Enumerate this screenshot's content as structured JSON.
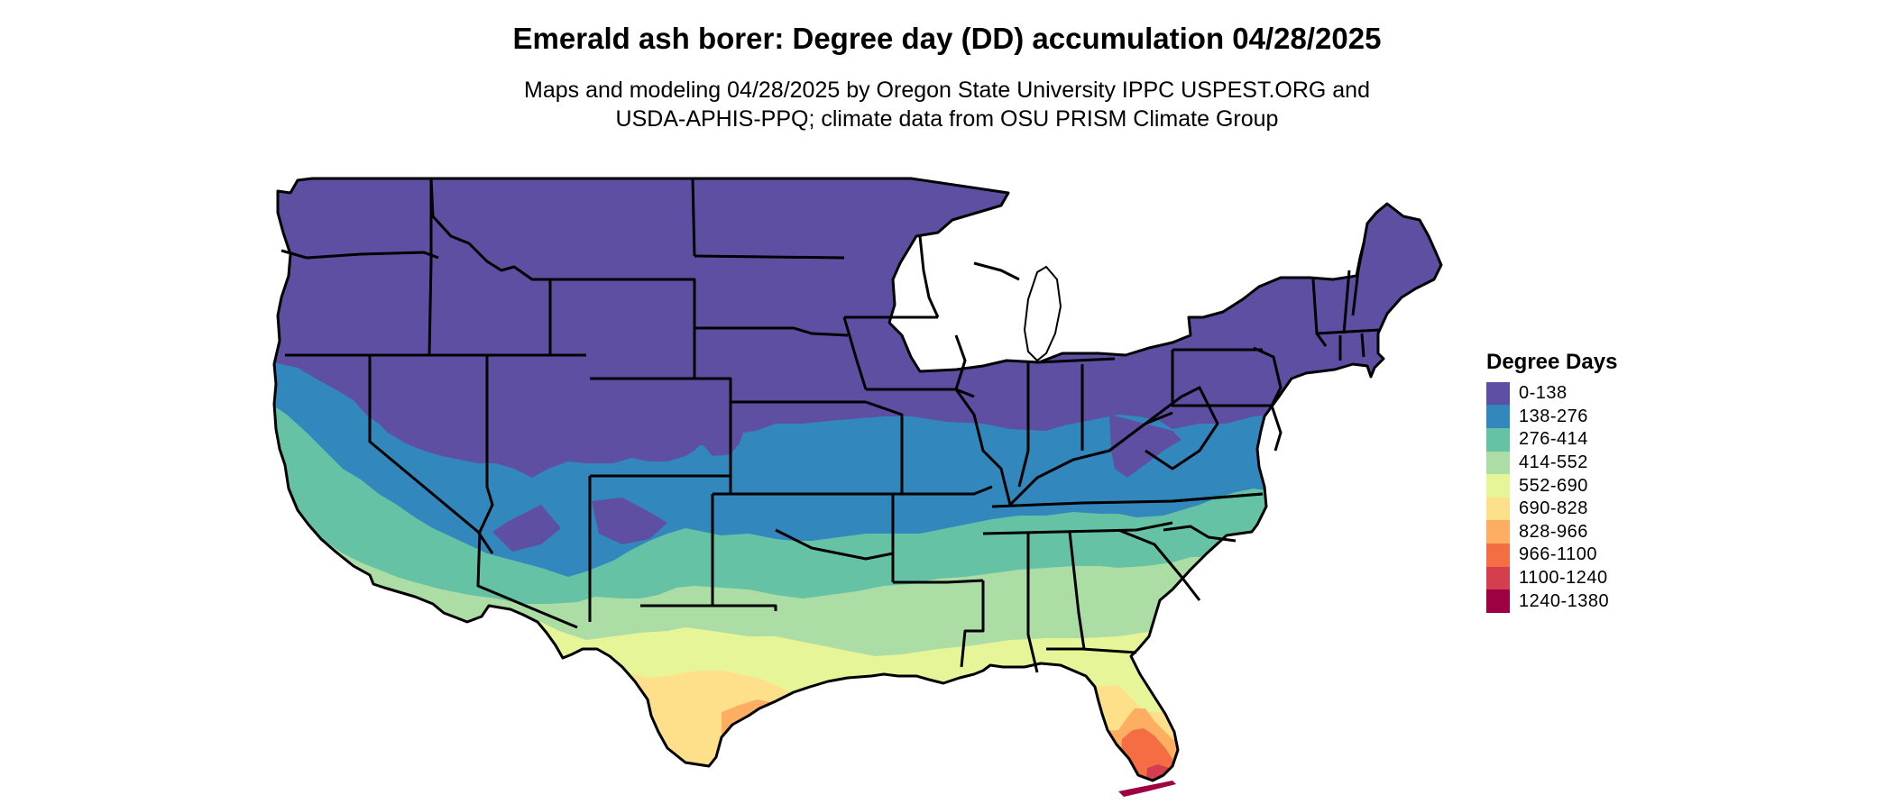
{
  "title": "Emerald ash borer: Degree day (DD) accumulation 04/28/2025",
  "subtitle_line1": "Maps and modeling 04/28/2025 by Oregon State University IPPC USPEST.ORG and",
  "subtitle_line2": "USDA-APHIS-PPQ; climate data from OSU PRISM Climate Group",
  "legend": {
    "title": "Degree Days",
    "items": [
      {
        "label": "0-138",
        "color": "#5E4FA2"
      },
      {
        "label": "138-276",
        "color": "#3288BD"
      },
      {
        "label": "276-414",
        "color": "#66C2A5"
      },
      {
        "label": "414-552",
        "color": "#ABDDA4"
      },
      {
        "label": "552-690",
        "color": "#E6F598"
      },
      {
        "label": "690-828",
        "color": "#FEE08B"
      },
      {
        "label": "828-966",
        "color": "#FDAE61"
      },
      {
        "label": "966-1100",
        "color": "#F46D43"
      },
      {
        "label": "1100-1240",
        "color": "#D53E4F"
      },
      {
        "label": "1240-1380",
        "color": "#9E0142"
      }
    ]
  }
}
